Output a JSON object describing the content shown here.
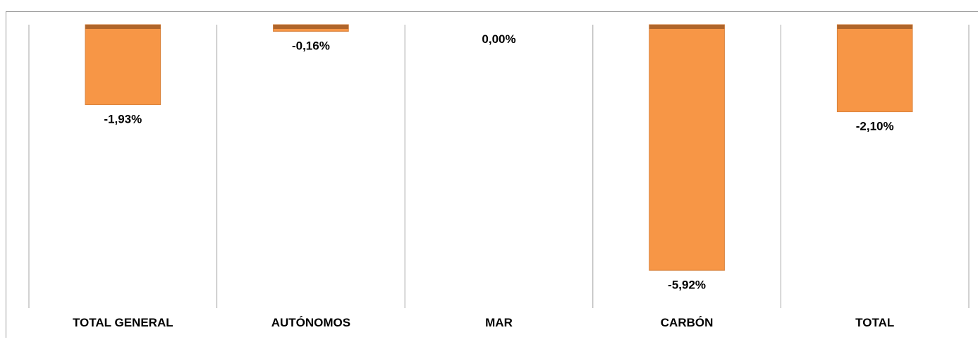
{
  "chart_data": {
    "type": "bar",
    "title": "",
    "categories": [
      "TOTAL GENERAL",
      "AUTÓNOMOS",
      "MAR",
      "CARBÓN",
      "TOTAL"
    ],
    "series": [
      {
        "values": [
          -1.93,
          -0.16,
          0.0,
          -5.92,
          -2.1
        ],
        "labels": [
          "-1,93%",
          "-0,16%",
          "0,00%",
          "-5,92%",
          "-2,10%"
        ]
      }
    ],
    "ylim": [
      -6.0,
      0.0
    ],
    "xlabel": "",
    "ylabel": "",
    "grid": "vertical separators",
    "legend": "none",
    "colors": {
      "bar_fill": "#F79646",
      "bar_top": "#B0652A",
      "bar_edge": "#D9823C",
      "gridline": "#A6A6A6"
    }
  }
}
